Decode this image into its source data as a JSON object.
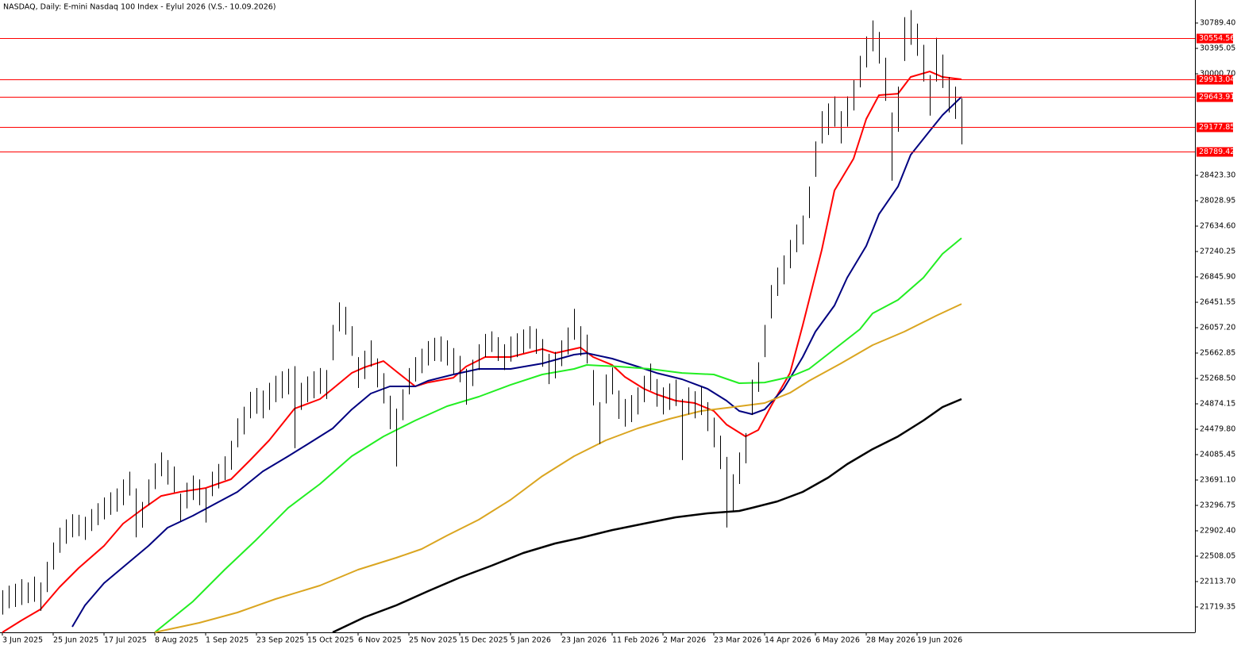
{
  "chart_data": {
    "type": "range-bars",
    "title": "NASDAQ, Daily:  E-mini Nasdaq 100 Index - Eylul 2026 (V.S.- 10.09.2026)",
    "bar_color": "#000000",
    "x": [
      0,
      1,
      2,
      3,
      4,
      5,
      6,
      7,
      8,
      9,
      10,
      11,
      12,
      13,
      14,
      15,
      16,
      17,
      18,
      19,
      20,
      21,
      22,
      23,
      24,
      25,
      26,
      27,
      28,
      29,
      30,
      31,
      32,
      33,
      34,
      35,
      36,
      37,
      38,
      39,
      40,
      41,
      42,
      43,
      44,
      45,
      46,
      47,
      48,
      49,
      50,
      51,
      52,
      53,
      54,
      55,
      56,
      57,
      58,
      59,
      60,
      61,
      62,
      63,
      64,
      65,
      66,
      67,
      68,
      69,
      70,
      71,
      72,
      73,
      74,
      75,
      76,
      77,
      78,
      79,
      80,
      81,
      82,
      83,
      84,
      85,
      86,
      87,
      88,
      89,
      90,
      91,
      92,
      93,
      94,
      95,
      96,
      97,
      98,
      99,
      100,
      101,
      102,
      103,
      104,
      105,
      106,
      107,
      108,
      109,
      110,
      111,
      112,
      113,
      114,
      115,
      116,
      117,
      118,
      119,
      120,
      121,
      122,
      123,
      124,
      125,
      126,
      127,
      128,
      129,
      130,
      131,
      132,
      133,
      134,
      135,
      136,
      137,
      138,
      139,
      140,
      141,
      142,
      143,
      144,
      145,
      146,
      147,
      148,
      149,
      150,
      151
    ],
    "high": [
      21980,
      22050,
      22080,
      22150,
      22100,
      22190,
      22100,
      22420,
      22720,
      22950,
      23080,
      23160,
      23150,
      23120,
      23240,
      23330,
      23420,
      23500,
      23560,
      23700,
      23820,
      23560,
      23350,
      23700,
      23950,
      24120,
      24000,
      23900,
      23480,
      23650,
      23760,
      23700,
      23560,
      23820,
      23940,
      24060,
      24300,
      24650,
      24830,
      25060,
      25120,
      25080,
      25200,
      25310,
      25380,
      25420,
      25460,
      25200,
      25300,
      25380,
      25430,
      25400,
      26100,
      26450,
      26380,
      26080,
      25600,
      25700,
      25860,
      25580,
      25350,
      25000,
      24800,
      25100,
      25430,
      25600,
      25730,
      25850,
      25900,
      25920,
      25860,
      25740,
      25620,
      25420,
      25560,
      25800,
      25960,
      26000,
      25910,
      25800,
      25920,
      25970,
      26030,
      26080,
      26040,
      25880,
      25650,
      25680,
      25860,
      26060,
      26350,
      26080,
      25950,
      25400,
      24900,
      25330,
      25440,
      25080,
      24950,
      25010,
      25130,
      25310,
      25500,
      25260,
      25130,
      25190,
      25250,
      24950,
      25130,
      25070,
      25140,
      24900,
      24660,
      24380,
      24050,
      23780,
      24120,
      24420,
      25250,
      25520,
      26100,
      26720,
      26990,
      27180,
      27420,
      27660,
      27800,
      28250,
      28950,
      29420,
      29540,
      29650,
      29420,
      29650,
      29900,
      30280,
      30580,
      30830,
      30650,
      30250,
      29400,
      29800,
      30880,
      30990,
      30780,
      30450,
      29980,
      30560,
      30300,
      29950,
      29800,
      29620
    ],
    "low": [
      21600,
      21700,
      21720,
      21750,
      21780,
      21800,
      21660,
      21950,
      22300,
      22560,
      22700,
      22800,
      22820,
      22760,
      22900,
      22990,
      23080,
      23150,
      23200,
      23300,
      23450,
      22800,
      22950,
      23300,
      23550,
      23750,
      23620,
      23500,
      23050,
      23250,
      23380,
      23300,
      23030,
      23440,
      23560,
      23690,
      23850,
      24200,
      24400,
      24650,
      24720,
      24650,
      24780,
      24900,
      24960,
      25020,
      24185,
      24780,
      24900,
      24960,
      25030,
      24950,
      25550,
      26000,
      25950,
      25620,
      25120,
      25260,
      25450,
      25130,
      24880,
      24480,
      23901,
      24620,
      25020,
      25220,
      25350,
      25470,
      25540,
      25530,
      25470,
      25340,
      25210,
      24860,
      25150,
      25400,
      25600,
      25680,
      25540,
      25400,
      25530,
      25600,
      25660,
      25730,
      25650,
      25450,
      25180,
      25270,
      25460,
      25640,
      25870,
      25620,
      25500,
      24850,
      24250,
      24880,
      25020,
      24640,
      24520,
      24590,
      24710,
      24900,
      25080,
      24830,
      24710,
      24780,
      24840,
      24001,
      24710,
      24650,
      24700,
      24450,
      24200,
      23860,
      22953,
      23200,
      23630,
      23950,
      24700,
      25060,
      25600,
      26200,
      26550,
      26730,
      26980,
      27230,
      27350,
      27760,
      28400,
      28920,
      29050,
      29180,
      28920,
      29180,
      29430,
      29790,
      30100,
      30350,
      30160,
      29580,
      28340,
      29100,
      30200,
      30450,
      30280,
      29880,
      29350,
      29880,
      29780,
      29400,
      29300,
      28904
    ],
    "lines": [
      {
        "color": "#ff0000",
        "x": [
          0,
          3,
          6,
          9,
          12,
          16,
          19,
          22,
          25,
          28,
          32,
          36,
          39,
          42,
          46,
          50,
          52,
          55,
          57,
          60,
          62,
          65,
          67,
          71,
          73,
          76,
          80,
          85,
          87,
          91,
          93,
          96,
          98,
          101,
          103,
          106,
          109,
          112,
          114,
          117,
          119,
          121,
          124,
          126,
          129,
          131,
          134,
          136,
          138,
          141,
          143,
          146,
          148,
          151
        ],
        "values": [
          21325,
          21510,
          21682,
          22027,
          22323,
          22668,
          23013,
          23235,
          23444,
          23506,
          23567,
          23703,
          23999,
          24307,
          24800,
          24948,
          25108,
          25354,
          25441,
          25539,
          25379,
          25145,
          25206,
          25280,
          25453,
          25601,
          25601,
          25724,
          25662,
          25749,
          25601,
          25478,
          25293,
          25108,
          25022,
          24923,
          24886,
          24763,
          24553,
          24368,
          24467,
          24837,
          25354,
          26094,
          27265,
          28189,
          28682,
          29298,
          29668,
          29692,
          29951,
          30037,
          29951,
          29914
        ]
      },
      {
        "color": "#000080",
        "x": [
          11,
          13,
          16,
          20,
          23,
          26,
          30,
          33,
          37,
          41,
          45,
          48,
          52,
          55,
          58,
          61,
          65,
          67,
          71,
          75,
          80,
          85,
          90,
          92,
          96,
          100,
          103,
          107,
          111,
          114,
          116,
          118,
          120,
          123,
          126,
          128,
          131,
          133,
          136,
          138,
          141,
          143,
          146,
          148,
          151
        ],
        "values": [
          21411,
          21744,
          22089,
          22421,
          22668,
          22951,
          23136,
          23296,
          23506,
          23826,
          24061,
          24245,
          24492,
          24787,
          25034,
          25145,
          25145,
          25231,
          25330,
          25416,
          25416,
          25502,
          25638,
          25662,
          25576,
          25453,
          25354,
          25256,
          25108,
          24923,
          24763,
          24714,
          24787,
          25108,
          25601,
          25995,
          26402,
          26833,
          27326,
          27819,
          28250,
          28743,
          29113,
          29359,
          29643
        ]
      },
      {
        "color": "#22ee22",
        "x": [
          24,
          30,
          35,
          40,
          45,
          50,
          55,
          60,
          65,
          70,
          75,
          80,
          85,
          90,
          92,
          97,
          102,
          107,
          112,
          116,
          120,
          124,
          127,
          131,
          135,
          137,
          141,
          145,
          148,
          151
        ],
        "values": [
          21325,
          21805,
          22298,
          22766,
          23259,
          23629,
          24061,
          24368,
          24615,
          24837,
          24985,
          25169,
          25330,
          25416,
          25478,
          25453,
          25416,
          25354,
          25330,
          25194,
          25206,
          25293,
          25416,
          25724,
          26032,
          26279,
          26488,
          26833,
          27203,
          27449
        ]
      },
      {
        "color": "#daa520",
        "x": [
          24,
          31,
          37,
          43,
          50,
          56,
          62,
          66,
          70,
          75,
          80,
          85,
          90,
          95,
          100,
          105,
          110,
          115,
          120,
          124,
          127,
          132,
          137,
          142,
          147,
          151
        ],
        "values": [
          21325,
          21473,
          21633,
          21842,
          22052,
          22298,
          22483,
          22619,
          22828,
          23075,
          23383,
          23752,
          24061,
          24307,
          24492,
          24640,
          24763,
          24824,
          24886,
          25046,
          25231,
          25502,
          25786,
          25995,
          26242,
          26426
        ]
      },
      {
        "color": "#000000",
        "x": [
          52,
          57,
          62,
          67,
          72,
          77,
          82,
          87,
          91,
          96,
          101,
          106,
          111,
          116,
          118,
          122,
          126,
          130,
          133,
          137,
          141,
          145,
          148,
          151
        ],
        "values": [
          21325,
          21559,
          21744,
          21965,
          22175,
          22360,
          22557,
          22705,
          22791,
          22914,
          23013,
          23112,
          23173,
          23210,
          23259,
          23358,
          23506,
          23728,
          23937,
          24171,
          24368,
          24615,
          24824,
          24948
        ]
      }
    ],
    "levels": {
      "color": "#ff0000",
      "values": [
        30554.56,
        29913.04,
        29643.91,
        29177.85,
        28789.42
      ]
    },
    "xlim": [
      -0.375,
      187.75
    ],
    "ylim": [
      21325.03,
      31146.78
    ],
    "xticks": [
      {
        "value": 0,
        "label": "3 Jun 2025"
      },
      {
        "value": 8,
        "label": "25 Jun 2025"
      },
      {
        "value": 16,
        "label": "17 Jul 2025"
      },
      {
        "value": 24,
        "label": "8 Aug 2025"
      },
      {
        "value": 32,
        "label": "1 Sep 2025"
      },
      {
        "value": 40,
        "label": "23 Sep 2025"
      },
      {
        "value": 48,
        "label": "15 Oct 2025"
      },
      {
        "value": 56,
        "label": "6 Nov 2025"
      },
      {
        "value": 64,
        "label": "25 Nov 2025"
      },
      {
        "value": 72,
        "label": "15 Dec 2025"
      },
      {
        "value": 80,
        "label": "5 Jan 2026"
      },
      {
        "value": 88,
        "label": "23 Jan 2026"
      },
      {
        "value": 96,
        "label": "11 Feb 2026"
      },
      {
        "value": 104,
        "label": "2 Mar 2026"
      },
      {
        "value": 112,
        "label": "23 Mar 2026"
      },
      {
        "value": 120,
        "label": "14 Apr 2026"
      },
      {
        "value": 128,
        "label": "6 May 2026"
      },
      {
        "value": 136,
        "label": "28 May 2026"
      },
      {
        "value": 144,
        "label": "19 Jun 2026"
      }
    ],
    "yticks": [
      {
        "value": 30789.4,
        "label": "30789.40"
      },
      {
        "value": 30395.05,
        "label": "30395.05"
      },
      {
        "value": 30000.7,
        "label": "30000.70"
      },
      {
        "value": 28423.3,
        "label": "28423.30"
      },
      {
        "value": 28028.95,
        "label": "28028.95"
      },
      {
        "value": 27634.6,
        "label": "27634.60"
      },
      {
        "value": 27240.25,
        "label": "27240.25"
      },
      {
        "value": 26845.9,
        "label": "26845.90"
      },
      {
        "value": 26451.55,
        "label": "26451.55"
      },
      {
        "value": 26057.2,
        "label": "26057.20"
      },
      {
        "value": 25662.85,
        "label": "25662.85"
      },
      {
        "value": 25268.5,
        "label": "25268.50"
      },
      {
        "value": 24874.15,
        "label": "24874.15"
      },
      {
        "value": 24479.8,
        "label": "24479.80"
      },
      {
        "value": 24085.45,
        "label": "24085.45"
      },
      {
        "value": 23691.1,
        "label": "23691.10"
      },
      {
        "value": 23296.75,
        "label": "23296.75"
      },
      {
        "value": 22902.4,
        "label": "22902.40"
      },
      {
        "value": 22508.05,
        "label": "22508.05"
      },
      {
        "value": 22113.7,
        "label": "22113.70"
      },
      {
        "value": 21719.35,
        "label": "21719.35"
      }
    ]
  }
}
